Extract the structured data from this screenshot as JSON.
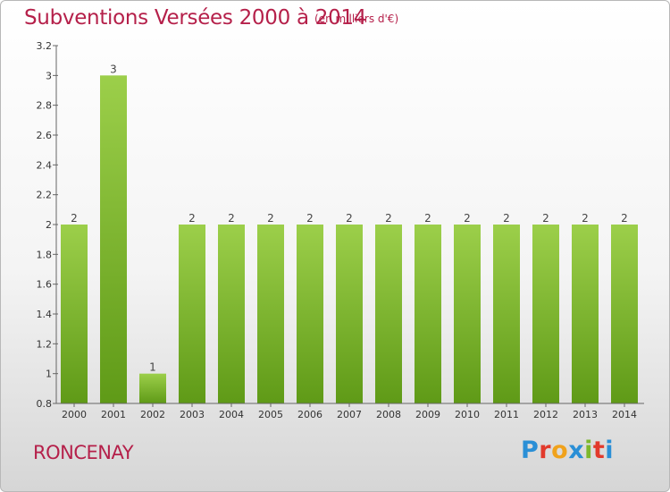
{
  "header": {
    "title": "Subventions Versées 2000 à 2014",
    "unit": "(en milliers d'€)"
  },
  "footer": {
    "commune": "RONCENAY",
    "logo": "Proxiti"
  },
  "colors": {
    "title": "#b5204a",
    "bar_light": "#9ccf4a",
    "bar_dark": "#5f9a17",
    "logo_blue": "#2a8fd6",
    "logo_red": "#e23a2c",
    "logo_orange": "#f0a21c",
    "logo_green": "#7db82c"
  },
  "chart_data": {
    "type": "bar",
    "categories": [
      "2000",
      "2001",
      "2002",
      "2003",
      "2004",
      "2005",
      "2006",
      "2007",
      "2008",
      "2009",
      "2010",
      "2011",
      "2012",
      "2013",
      "2014"
    ],
    "values": [
      2,
      3,
      1,
      2,
      2,
      2,
      2,
      2,
      2,
      2,
      2,
      2,
      2,
      2,
      2
    ],
    "data_labels": [
      "2",
      "3",
      "1",
      "2",
      "2",
      "2",
      "2",
      "2",
      "2",
      "2",
      "2",
      "2",
      "2",
      "2",
      "2"
    ],
    "title": "Subventions Versées 2000 à 2014",
    "xlabel": "",
    "ylabel": "",
    "ylim": [
      0.8,
      3.2
    ],
    "yticks": [
      "0.8",
      "1",
      "1.2",
      "1.4",
      "1.6",
      "1.8",
      "2",
      "2.2",
      "2.4",
      "2.6",
      "2.8",
      "3",
      "3.2"
    ],
    "grid": false,
    "legend": "none"
  }
}
